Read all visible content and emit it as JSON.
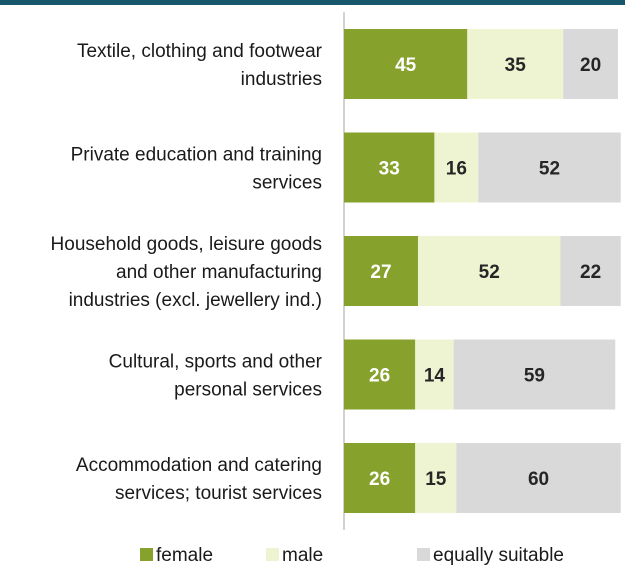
{
  "colors": {
    "female": "#86a12c",
    "male": "#eef4d2",
    "equally_suitable": "#d9d9d9",
    "axis": "#a6a6a6",
    "label_on_dark": "#ffffff",
    "label_on_light": "#262626"
  },
  "chart_data": {
    "type": "bar",
    "orientation": "horizontal",
    "stacked": true,
    "categories": [
      [
        "Textile, clothing and footwear",
        "industries"
      ],
      [
        "Private education and training",
        "services"
      ],
      [
        "Household goods, leisure goods",
        "and other manufacturing",
        "industries (excl. jewellery ind.)"
      ],
      [
        "Cultural, sports and other",
        "personal services"
      ],
      [
        "Accommodation and catering",
        "services; tourist services"
      ]
    ],
    "series": [
      {
        "name": "female",
        "values": [
          45,
          33,
          27,
          26,
          26
        ]
      },
      {
        "name": "male",
        "values": [
          35,
          16,
          52,
          14,
          15
        ]
      },
      {
        "name": "equally suitable",
        "values": [
          20,
          52,
          22,
          59,
          60
        ]
      }
    ],
    "xlim": [
      0,
      100
    ],
    "data_labels": true,
    "legend": "bottom",
    "grid": false
  }
}
